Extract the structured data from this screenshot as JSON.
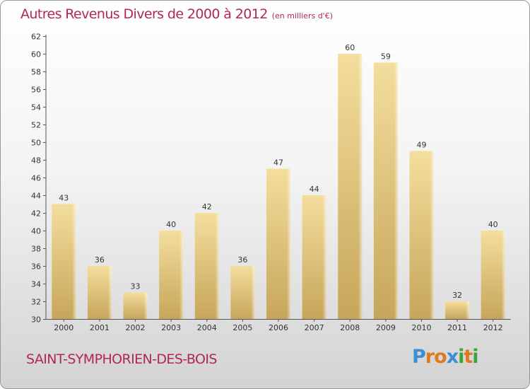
{
  "header": {
    "title": "Autres Revenus Divers de 2000 à 2012",
    "subtitle": "(en milliers d'€)"
  },
  "footer": {
    "commune": "SAINT-SYMPHORIEN-DES-BOIS",
    "logo_text": "Proxiti"
  },
  "colors": {
    "title": "#b0275a",
    "bar_light": "#f3dc9a",
    "bar_dark": "#c9a95b",
    "axis": "#555555",
    "logo": [
      "#3b8fd6",
      "#e07a1f",
      "#e07a1f",
      "#3b8fd6",
      "#3aa53a",
      "#e07a1f",
      "#3aa53a"
    ]
  },
  "chart_data": {
    "type": "bar",
    "title": "Autres Revenus Divers de 2000 à 2012",
    "subtitle": "(en milliers d'€)",
    "categories": [
      "2000",
      "2001",
      "2002",
      "2003",
      "2004",
      "2005",
      "2006",
      "2007",
      "2008",
      "2009",
      "2010",
      "2011",
      "2012"
    ],
    "values": [
      43,
      36,
      33,
      40,
      42,
      36,
      47,
      44,
      60,
      59,
      49,
      32,
      40
    ],
    "ylim": [
      30,
      62
    ],
    "yticks": [
      30,
      32,
      34,
      36,
      38,
      40,
      42,
      44,
      46,
      48,
      50,
      52,
      54,
      56,
      58,
      60,
      62
    ],
    "grid": false,
    "legend": "none"
  }
}
